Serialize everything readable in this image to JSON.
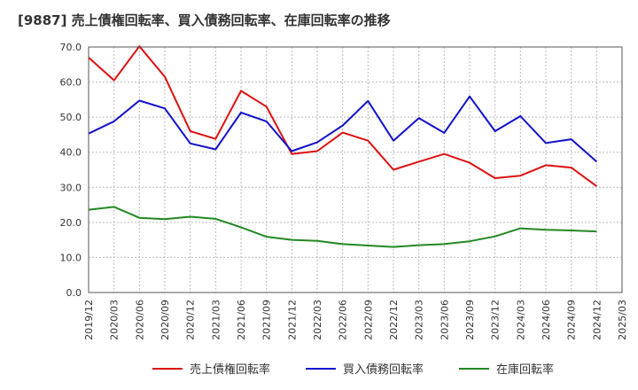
{
  "chart_data": {
    "type": "line",
    "title": "[9887]  売上債権回転率、買入債務回転率、在庫回転率の推移",
    "xlabel": "",
    "ylabel": "",
    "ylim": [
      0,
      70
    ],
    "yticks": [
      0,
      10,
      20,
      30,
      40,
      50,
      60,
      70
    ],
    "ytick_labels": [
      "0.0",
      "10.0",
      "20.0",
      "30.0",
      "40.0",
      "50.0",
      "60.0",
      "70.0"
    ],
    "grid": true,
    "legend_position": "bottom",
    "categories": [
      "2019/12",
      "2020/03",
      "2020/06",
      "2020/09",
      "2020/12",
      "2021/03",
      "2021/06",
      "2021/09",
      "2021/12",
      "2022/03",
      "2022/06",
      "2022/09",
      "2022/12",
      "2023/03",
      "2023/06",
      "2023/09",
      "2023/12",
      "2024/03",
      "2024/06",
      "2024/09",
      "2024/12",
      "2025/03"
    ],
    "series": [
      {
        "name": "売上債権回転率",
        "color": "#dd1111",
        "values": [
          67.0,
          60.5,
          70.2,
          61.5,
          46.0,
          43.8,
          57.5,
          53.0,
          39.5,
          40.3,
          45.6,
          43.3,
          35.0,
          37.3,
          39.5,
          37.0,
          32.6,
          33.3,
          36.3,
          35.6,
          30.3,
          null
        ]
      },
      {
        "name": "買入債務回転率",
        "color": "#1111cc",
        "values": [
          45.3,
          48.8,
          54.7,
          52.5,
          42.5,
          40.8,
          51.3,
          48.8,
          40.3,
          42.8,
          47.6,
          54.6,
          43.3,
          49.7,
          45.5,
          55.9,
          46.0,
          50.3,
          42.6,
          43.7,
          37.3,
          null
        ]
      },
      {
        "name": "在庫回転率",
        "color": "#228822",
        "values": [
          23.6,
          24.4,
          21.3,
          20.9,
          21.6,
          21.0,
          18.6,
          15.9,
          15.0,
          14.7,
          13.8,
          13.4,
          13.0,
          13.5,
          13.8,
          14.6,
          16.0,
          18.3,
          17.9,
          17.7,
          17.4,
          null
        ]
      }
    ]
  }
}
